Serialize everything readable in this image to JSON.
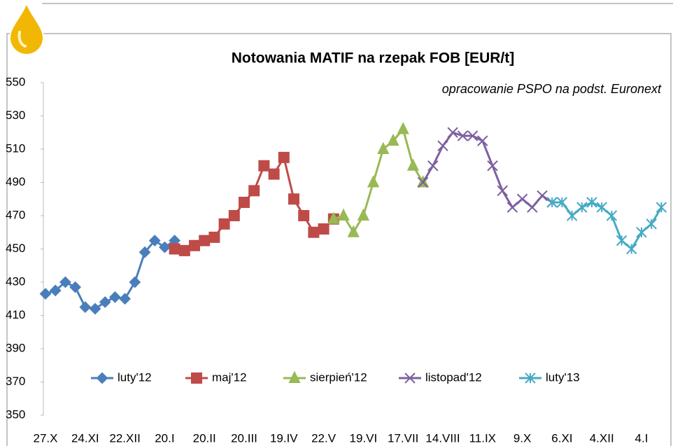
{
  "chart_data": {
    "type": "line",
    "title": "Notowania MATIF na rzepak FOB [EUR/t]",
    "subtitle": "opracowanie PSPO na podst. Euronext",
    "categories": [
      "27.X",
      null,
      null,
      null,
      "24.XI",
      null,
      null,
      null,
      "22.XII",
      null,
      null,
      null,
      "20.I",
      null,
      null,
      null,
      "20.II",
      null,
      null,
      null,
      "20.III",
      null,
      null,
      null,
      "19.IV",
      null,
      null,
      null,
      "22.V",
      null,
      null,
      null,
      "19.VI",
      null,
      null,
      null,
      "17.VII",
      null,
      null,
      null,
      "14.VIII",
      null,
      null,
      null,
      "11.IX",
      null,
      null,
      null,
      "9.X",
      null,
      null,
      null,
      "6.XI",
      null,
      null,
      null,
      "4.XII",
      null,
      null,
      null,
      "4.I",
      null,
      null
    ],
    "series": [
      {
        "name": "luty'12",
        "color": "#4a7ebb",
        "marker": "diamond",
        "values": [
          423,
          425,
          430,
          427,
          415,
          414,
          418,
          421,
          420,
          430,
          448,
          455,
          451,
          455,
          null,
          null,
          null,
          null,
          null,
          null,
          null,
          null,
          null,
          null,
          null,
          null,
          null,
          null,
          null,
          null,
          null,
          null,
          null,
          null,
          null,
          null,
          null,
          null,
          null,
          null,
          null,
          null,
          null,
          null,
          null,
          null,
          null,
          null,
          null,
          null,
          null,
          null,
          null,
          null,
          null,
          null,
          null,
          null,
          null,
          null,
          null,
          null,
          null
        ]
      },
      {
        "name": "maj'12",
        "color": "#be4b48",
        "marker": "square",
        "values": [
          null,
          null,
          null,
          null,
          null,
          null,
          null,
          null,
          null,
          null,
          null,
          null,
          null,
          450,
          449,
          452,
          455,
          457,
          465,
          470,
          478,
          485,
          500,
          495,
          505,
          480,
          470,
          460,
          462,
          468,
          null,
          null,
          null,
          null,
          null,
          null,
          null,
          null,
          null,
          null,
          null,
          null,
          null,
          null,
          null,
          null,
          null,
          null,
          null,
          null,
          null,
          null,
          null,
          null,
          null,
          null,
          null,
          null,
          null,
          null,
          null,
          null,
          null
        ]
      },
      {
        "name": "sierpień'12",
        "color": "#98b954",
        "marker": "triangle",
        "values": [
          null,
          null,
          null,
          null,
          null,
          null,
          null,
          null,
          null,
          null,
          null,
          null,
          null,
          null,
          null,
          null,
          null,
          null,
          null,
          null,
          null,
          null,
          null,
          null,
          null,
          null,
          null,
          null,
          null,
          468,
          470,
          460,
          470,
          490,
          510,
          515,
          522,
          500,
          490,
          null,
          null,
          null,
          null,
          null,
          null,
          null,
          null,
          null,
          null,
          null,
          null,
          null,
          null,
          null,
          null,
          null,
          null,
          null,
          null,
          null,
          null,
          null,
          null
        ]
      },
      {
        "name": "listopad'12",
        "color": "#7d60a0",
        "marker": "x",
        "values": [
          null,
          null,
          null,
          null,
          null,
          null,
          null,
          null,
          null,
          null,
          null,
          null,
          null,
          null,
          null,
          null,
          null,
          null,
          null,
          null,
          null,
          null,
          null,
          null,
          null,
          null,
          null,
          null,
          null,
          null,
          null,
          null,
          null,
          null,
          null,
          null,
          null,
          null,
          490,
          500,
          512,
          520,
          518,
          518,
          515,
          500,
          485,
          475,
          480,
          475,
          482,
          478,
          null,
          null,
          null,
          null,
          null,
          null,
          null,
          null,
          null,
          null,
          null
        ]
      },
      {
        "name": "luty'13",
        "color": "#46aac5",
        "marker": "star",
        "values": [
          null,
          null,
          null,
          null,
          null,
          null,
          null,
          null,
          null,
          null,
          null,
          null,
          null,
          null,
          null,
          null,
          null,
          null,
          null,
          null,
          null,
          null,
          null,
          null,
          null,
          null,
          null,
          null,
          null,
          null,
          null,
          null,
          null,
          null,
          null,
          null,
          null,
          null,
          null,
          null,
          null,
          null,
          null,
          null,
          null,
          null,
          null,
          null,
          null,
          null,
          null,
          478,
          478,
          470,
          475,
          478,
          475,
          470,
          455,
          450,
          460,
          465,
          475
        ]
      }
    ],
    "ylim": [
      350,
      550
    ],
    "yticks": [
      350,
      370,
      390,
      410,
      430,
      450,
      470,
      490,
      510,
      530,
      550
    ],
    "legend": "bottom"
  }
}
